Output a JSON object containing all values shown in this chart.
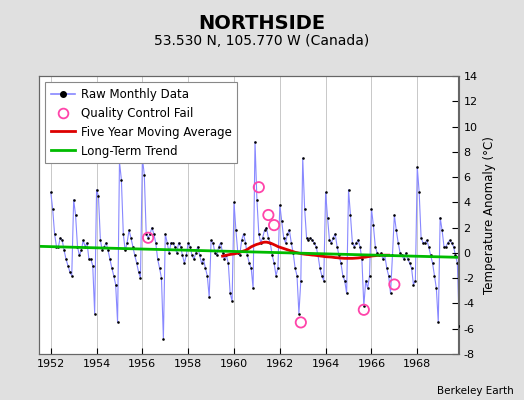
{
  "title": "NORTHSIDE",
  "subtitle": "53.530 N, 105.770 W (Canada)",
  "ylabel_right": "Temperature Anomaly (°C)",
  "attribution": "Berkeley Earth",
  "xlim": [
    1951.5,
    1969.8
  ],
  "ylim": [
    -8,
    14
  ],
  "yticks": [
    -8,
    -6,
    -4,
    -2,
    0,
    2,
    4,
    6,
    8,
    10,
    12,
    14
  ],
  "xticks": [
    1952,
    1954,
    1956,
    1958,
    1960,
    1962,
    1964,
    1966,
    1968
  ],
  "bg_color": "#e0e0e0",
  "plot_bg_color": "#ffffff",
  "grid_color": "#c8c8c8",
  "raw_color": "#8888ff",
  "dot_color": "#000000",
  "ma_color": "#dd0000",
  "trend_color": "#00bb00",
  "qc_color": "#ff44aa",
  "title_fontsize": 14,
  "subtitle_fontsize": 10,
  "legend_fontsize": 8.5,
  "raw_monthly": [
    [
      1952.0,
      4.8
    ],
    [
      1952.083,
      3.5
    ],
    [
      1952.167,
      1.5
    ],
    [
      1952.25,
      0.5
    ],
    [
      1952.333,
      0.5
    ],
    [
      1952.417,
      1.2
    ],
    [
      1952.5,
      1.0
    ],
    [
      1952.583,
      0.2
    ],
    [
      1952.667,
      -0.5
    ],
    [
      1952.75,
      -1.0
    ],
    [
      1952.833,
      -1.5
    ],
    [
      1952.917,
      -1.8
    ],
    [
      1953.0,
      4.2
    ],
    [
      1953.083,
      3.0
    ],
    [
      1953.167,
      0.5
    ],
    [
      1953.25,
      -0.2
    ],
    [
      1953.333,
      0.2
    ],
    [
      1953.417,
      1.0
    ],
    [
      1953.5,
      0.5
    ],
    [
      1953.583,
      0.8
    ],
    [
      1953.667,
      -0.5
    ],
    [
      1953.75,
      -0.5
    ],
    [
      1953.833,
      -1.0
    ],
    [
      1953.917,
      -4.8
    ],
    [
      1954.0,
      5.0
    ],
    [
      1954.083,
      4.5
    ],
    [
      1954.167,
      1.0
    ],
    [
      1954.25,
      0.2
    ],
    [
      1954.333,
      0.5
    ],
    [
      1954.417,
      0.8
    ],
    [
      1954.5,
      0.2
    ],
    [
      1954.583,
      -0.5
    ],
    [
      1954.667,
      -1.2
    ],
    [
      1954.75,
      -1.8
    ],
    [
      1954.833,
      -2.5
    ],
    [
      1954.917,
      -5.5
    ],
    [
      1955.0,
      7.2
    ],
    [
      1955.083,
      5.8
    ],
    [
      1955.167,
      1.5
    ],
    [
      1955.25,
      0.2
    ],
    [
      1955.333,
      0.8
    ],
    [
      1955.417,
      1.8
    ],
    [
      1955.5,
      1.2
    ],
    [
      1955.583,
      0.5
    ],
    [
      1955.667,
      -0.2
    ],
    [
      1955.75,
      -0.8
    ],
    [
      1955.833,
      -1.5
    ],
    [
      1955.917,
      -2.0
    ],
    [
      1956.0,
      7.5
    ],
    [
      1956.083,
      6.2
    ],
    [
      1956.167,
      1.5
    ],
    [
      1956.25,
      1.2
    ],
    [
      1956.333,
      1.5
    ],
    [
      1956.417,
      2.0
    ],
    [
      1956.5,
      1.5
    ],
    [
      1956.583,
      0.8
    ],
    [
      1956.667,
      -0.5
    ],
    [
      1956.75,
      -1.2
    ],
    [
      1956.833,
      -2.0
    ],
    [
      1956.917,
      -6.8
    ],
    [
      1957.0,
      1.5
    ],
    [
      1957.083,
      0.8
    ],
    [
      1957.167,
      0.0
    ],
    [
      1957.25,
      0.8
    ],
    [
      1957.333,
      0.8
    ],
    [
      1957.417,
      0.5
    ],
    [
      1957.5,
      0.0
    ],
    [
      1957.583,
      0.8
    ],
    [
      1957.667,
      0.5
    ],
    [
      1957.75,
      -0.2
    ],
    [
      1957.833,
      -0.8
    ],
    [
      1957.917,
      -0.2
    ],
    [
      1958.0,
      0.8
    ],
    [
      1958.083,
      0.5
    ],
    [
      1958.167,
      -0.2
    ],
    [
      1958.25,
      -0.5
    ],
    [
      1958.333,
      0.0
    ],
    [
      1958.417,
      0.5
    ],
    [
      1958.5,
      -0.2
    ],
    [
      1958.583,
      -0.8
    ],
    [
      1958.667,
      -0.5
    ],
    [
      1958.75,
      -1.2
    ],
    [
      1958.833,
      -1.8
    ],
    [
      1958.917,
      -3.5
    ],
    [
      1959.0,
      1.0
    ],
    [
      1959.083,
      0.8
    ],
    [
      1959.167,
      0.0
    ],
    [
      1959.25,
      -0.2
    ],
    [
      1959.333,
      0.5
    ],
    [
      1959.417,
      0.8
    ],
    [
      1959.5,
      0.0
    ],
    [
      1959.583,
      -0.5
    ],
    [
      1959.667,
      -0.2
    ],
    [
      1959.75,
      -0.8
    ],
    [
      1959.833,
      -3.2
    ],
    [
      1959.917,
      -3.8
    ],
    [
      1960.0,
      4.0
    ],
    [
      1960.083,
      1.8
    ],
    [
      1960.167,
      0.0
    ],
    [
      1960.25,
      -0.2
    ],
    [
      1960.333,
      1.0
    ],
    [
      1960.417,
      1.5
    ],
    [
      1960.5,
      0.8
    ],
    [
      1960.583,
      -0.2
    ],
    [
      1960.667,
      -0.8
    ],
    [
      1960.75,
      -1.2
    ],
    [
      1960.833,
      -2.8
    ],
    [
      1960.917,
      8.8
    ],
    [
      1961.0,
      4.2
    ],
    [
      1961.083,
      1.5
    ],
    [
      1961.167,
      0.8
    ],
    [
      1961.25,
      1.2
    ],
    [
      1961.333,
      1.8
    ],
    [
      1961.417,
      2.0
    ],
    [
      1961.5,
      1.2
    ],
    [
      1961.583,
      0.8
    ],
    [
      1961.667,
      -0.2
    ],
    [
      1961.75,
      -0.8
    ],
    [
      1961.833,
      -1.8
    ],
    [
      1961.917,
      -1.2
    ],
    [
      1962.0,
      3.8
    ],
    [
      1962.083,
      2.5
    ],
    [
      1962.167,
      1.2
    ],
    [
      1962.25,
      0.8
    ],
    [
      1962.333,
      1.5
    ],
    [
      1962.417,
      1.8
    ],
    [
      1962.5,
      0.8
    ],
    [
      1962.583,
      0.0
    ],
    [
      1962.667,
      -1.2
    ],
    [
      1962.75,
      -1.8
    ],
    [
      1962.833,
      -4.8
    ],
    [
      1962.917,
      -2.2
    ],
    [
      1963.0,
      7.5
    ],
    [
      1963.083,
      3.5
    ],
    [
      1963.167,
      1.2
    ],
    [
      1963.25,
      1.0
    ],
    [
      1963.333,
      1.2
    ],
    [
      1963.417,
      1.0
    ],
    [
      1963.5,
      0.8
    ],
    [
      1963.583,
      0.5
    ],
    [
      1963.667,
      -0.2
    ],
    [
      1963.75,
      -1.2
    ],
    [
      1963.833,
      -1.8
    ],
    [
      1963.917,
      -2.2
    ],
    [
      1964.0,
      4.8
    ],
    [
      1964.083,
      2.8
    ],
    [
      1964.167,
      1.0
    ],
    [
      1964.25,
      0.8
    ],
    [
      1964.333,
      1.2
    ],
    [
      1964.417,
      1.5
    ],
    [
      1964.5,
      0.5
    ],
    [
      1964.583,
      -0.2
    ],
    [
      1964.667,
      -0.8
    ],
    [
      1964.75,
      -1.8
    ],
    [
      1964.833,
      -2.2
    ],
    [
      1964.917,
      -3.2
    ],
    [
      1965.0,
      5.0
    ],
    [
      1965.083,
      3.0
    ],
    [
      1965.167,
      0.8
    ],
    [
      1965.25,
      0.5
    ],
    [
      1965.333,
      0.8
    ],
    [
      1965.417,
      1.0
    ],
    [
      1965.5,
      0.5
    ],
    [
      1965.583,
      -0.5
    ],
    [
      1965.667,
      -4.2
    ],
    [
      1965.75,
      -2.2
    ],
    [
      1965.833,
      -2.8
    ],
    [
      1965.917,
      -1.8
    ],
    [
      1966.0,
      3.5
    ],
    [
      1966.083,
      2.2
    ],
    [
      1966.167,
      0.5
    ],
    [
      1966.25,
      0.0
    ],
    [
      1966.333,
      -0.2
    ],
    [
      1966.417,
      0.0
    ],
    [
      1966.5,
      -0.5
    ],
    [
      1966.583,
      -0.2
    ],
    [
      1966.667,
      -1.2
    ],
    [
      1966.75,
      -1.8
    ],
    [
      1966.833,
      -3.2
    ],
    [
      1966.917,
      -0.2
    ],
    [
      1967.0,
      3.0
    ],
    [
      1967.083,
      1.8
    ],
    [
      1967.167,
      0.8
    ],
    [
      1967.25,
      0.0
    ],
    [
      1967.333,
      -0.2
    ],
    [
      1967.417,
      -0.5
    ],
    [
      1967.5,
      0.0
    ],
    [
      1967.583,
      -0.5
    ],
    [
      1967.667,
      -0.8
    ],
    [
      1967.75,
      -1.2
    ],
    [
      1967.833,
      -2.5
    ],
    [
      1967.917,
      -2.2
    ],
    [
      1968.0,
      6.8
    ],
    [
      1968.083,
      4.8
    ],
    [
      1968.167,
      1.2
    ],
    [
      1968.25,
      0.8
    ],
    [
      1968.333,
      0.8
    ],
    [
      1968.417,
      1.0
    ],
    [
      1968.5,
      0.5
    ],
    [
      1968.583,
      -0.2
    ],
    [
      1968.667,
      -0.8
    ],
    [
      1968.75,
      -1.8
    ],
    [
      1968.833,
      -2.8
    ],
    [
      1968.917,
      -5.5
    ],
    [
      1969.0,
      2.8
    ],
    [
      1969.083,
      1.8
    ],
    [
      1969.167,
      0.5
    ],
    [
      1969.25,
      0.5
    ],
    [
      1969.333,
      0.8
    ],
    [
      1969.417,
      1.0
    ],
    [
      1969.5,
      0.8
    ],
    [
      1969.583,
      0.5
    ],
    [
      1969.667,
      -0.2
    ],
    [
      1969.75,
      -0.8
    ],
    [
      1969.833,
      -5.8
    ]
  ],
  "qc_fails": [
    [
      1956.25,
      1.2
    ],
    [
      1961.083,
      5.2
    ],
    [
      1961.5,
      3.0
    ],
    [
      1961.75,
      2.2
    ],
    [
      1962.917,
      -5.5
    ],
    [
      1965.667,
      -4.5
    ],
    [
      1967.0,
      -2.5
    ]
  ],
  "moving_avg": [
    [
      1959.5,
      -0.25
    ],
    [
      1959.583,
      -0.22
    ],
    [
      1959.667,
      -0.18
    ],
    [
      1959.75,
      -0.15
    ],
    [
      1959.833,
      -0.12
    ],
    [
      1959.917,
      -0.1
    ],
    [
      1960.0,
      -0.08
    ],
    [
      1960.083,
      -0.05
    ],
    [
      1960.167,
      0.0
    ],
    [
      1960.25,
      0.05
    ],
    [
      1960.333,
      0.1
    ],
    [
      1960.417,
      0.15
    ],
    [
      1960.5,
      0.2
    ],
    [
      1960.583,
      0.28
    ],
    [
      1960.667,
      0.38
    ],
    [
      1960.75,
      0.48
    ],
    [
      1960.833,
      0.55
    ],
    [
      1960.917,
      0.62
    ],
    [
      1961.0,
      0.68
    ],
    [
      1961.083,
      0.72
    ],
    [
      1961.167,
      0.78
    ],
    [
      1961.25,
      0.82
    ],
    [
      1961.333,
      0.85
    ],
    [
      1961.417,
      0.85
    ],
    [
      1961.5,
      0.82
    ],
    [
      1961.583,
      0.78
    ],
    [
      1961.667,
      0.72
    ],
    [
      1961.75,
      0.65
    ],
    [
      1961.833,
      0.58
    ],
    [
      1961.917,
      0.5
    ],
    [
      1962.0,
      0.45
    ],
    [
      1962.083,
      0.4
    ],
    [
      1962.167,
      0.35
    ],
    [
      1962.25,
      0.3
    ],
    [
      1962.333,
      0.25
    ],
    [
      1962.417,
      0.2
    ],
    [
      1962.5,
      0.15
    ],
    [
      1962.583,
      0.1
    ],
    [
      1962.667,
      0.05
    ],
    [
      1962.75,
      0.02
    ],
    [
      1962.833,
      -0.02
    ],
    [
      1962.917,
      -0.05
    ],
    [
      1963.0,
      -0.08
    ],
    [
      1963.083,
      -0.1
    ],
    [
      1963.167,
      -0.12
    ],
    [
      1963.25,
      -0.13
    ],
    [
      1963.333,
      -0.15
    ],
    [
      1963.417,
      -0.17
    ],
    [
      1963.5,
      -0.18
    ],
    [
      1963.583,
      -0.2
    ],
    [
      1963.667,
      -0.22
    ],
    [
      1963.75,
      -0.24
    ],
    [
      1963.833,
      -0.26
    ],
    [
      1963.917,
      -0.28
    ],
    [
      1964.0,
      -0.3
    ],
    [
      1964.083,
      -0.31
    ],
    [
      1964.167,
      -0.32
    ],
    [
      1964.25,
      -0.33
    ],
    [
      1964.333,
      -0.35
    ],
    [
      1964.417,
      -0.37
    ],
    [
      1964.5,
      -0.38
    ],
    [
      1964.583,
      -0.4
    ],
    [
      1964.667,
      -0.41
    ],
    [
      1964.75,
      -0.42
    ],
    [
      1964.833,
      -0.43
    ],
    [
      1964.917,
      -0.43
    ],
    [
      1965.0,
      -0.43
    ],
    [
      1965.083,
      -0.43
    ],
    [
      1965.167,
      -0.43
    ],
    [
      1965.25,
      -0.42
    ],
    [
      1965.333,
      -0.41
    ],
    [
      1965.417,
      -0.4
    ],
    [
      1965.5,
      -0.38
    ],
    [
      1965.583,
      -0.36
    ],
    [
      1965.667,
      -0.35
    ],
    [
      1965.75,
      -0.33
    ],
    [
      1965.833,
      -0.3
    ],
    [
      1965.917,
      -0.28
    ],
    [
      1966.0,
      -0.25
    ],
    [
      1966.083,
      -0.23
    ],
    [
      1966.167,
      -0.22
    ],
    [
      1966.25,
      -0.2
    ],
    [
      1966.333,
      -0.18
    ],
    [
      1966.417,
      -0.18
    ],
    [
      1966.5,
      -0.18
    ],
    [
      1966.583,
      -0.18
    ],
    [
      1966.667,
      -0.18
    ],
    [
      1966.75,
      -0.18
    ]
  ],
  "trend": {
    "x": [
      1951.5,
      1969.8
    ],
    "y": [
      0.52,
      -0.35
    ]
  }
}
